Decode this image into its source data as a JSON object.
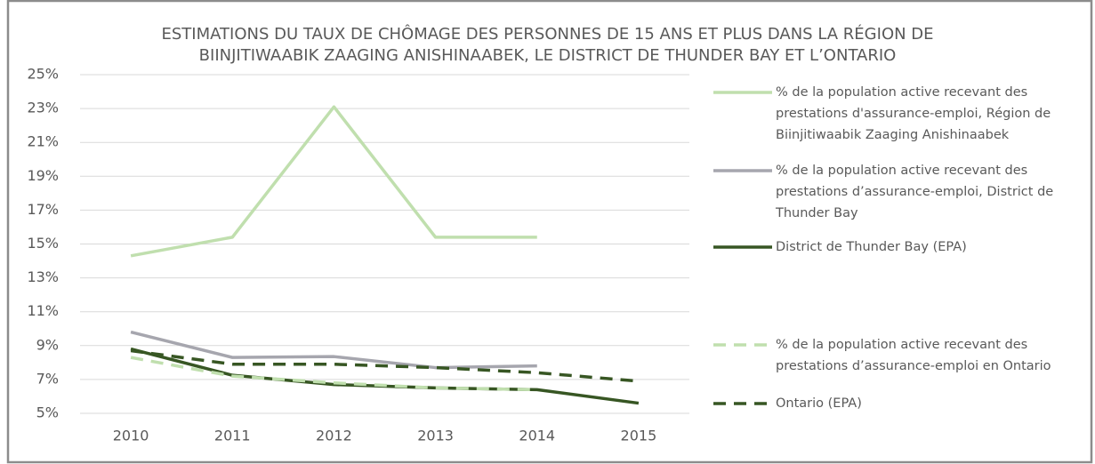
{
  "chart_data": {
    "type": "line",
    "title": [
      "ESTIMATIONS DU TAUX DE CHÔMAGE DES PERSONNES DE 15 ANS ET PLUS DANS LA RÉGION DE",
      "BIINJITIWAABIK ZAAGING ANISHINAABEK, LE DISTRICT DE THUNDER BAY ET L’ONTARIO"
    ],
    "categories": [
      "2010",
      "2011",
      "2012",
      "2013",
      "2014",
      "2015"
    ],
    "series": [
      {
        "name": "% de la population active recevant des prestations d'assurance-emploi, Région de Biinjitiwaabik Zaaging Anishinaabek",
        "color": "#c0dfae",
        "dashed": false,
        "values": [
          14.3,
          15.4,
          23.1,
          15.4,
          15.4,
          null
        ]
      },
      {
        "name": "% de la population active recevant des prestations d’assurance-emploi, District de Thunder Bay",
        "color": "#a6a6ae",
        "dashed": false,
        "values": [
          9.8,
          8.3,
          8.35,
          7.7,
          7.8,
          null
        ]
      },
      {
        "name": "District de Thunder Bay (EPA)",
        "color": "#375623",
        "dashed": false,
        "values": [
          8.8,
          7.25,
          6.7,
          6.5,
          6.4,
          5.6
        ]
      },
      {
        "name": "% de la population active recevant des prestations d’assurance-emploi en Ontario",
        "color": "#c0dfae",
        "dashed": true,
        "values": [
          8.3,
          7.2,
          6.8,
          6.5,
          6.4,
          null
        ]
      },
      {
        "name": "Ontario (EPA)",
        "color": "#375623",
        "dashed": true,
        "values": [
          8.7,
          7.9,
          7.9,
          7.7,
          7.4,
          6.9
        ]
      }
    ],
    "ylim": [
      5,
      25
    ],
    "yticks": [
      {
        "value": 5,
        "label": "5%"
      },
      {
        "value": 7,
        "label": "7%"
      },
      {
        "value": 9,
        "label": "9%"
      },
      {
        "value": 11,
        "label": "11%"
      },
      {
        "value": 13,
        "label": "13%"
      },
      {
        "value": 15,
        "label": "15%"
      },
      {
        "value": 17,
        "label": "17%"
      },
      {
        "value": 19,
        "label": "19%"
      },
      {
        "value": 21,
        "label": "21%"
      },
      {
        "value": 23,
        "label": "23%"
      },
      {
        "value": 25,
        "label": "25%"
      }
    ],
    "grid": true,
    "legend": "right"
  }
}
